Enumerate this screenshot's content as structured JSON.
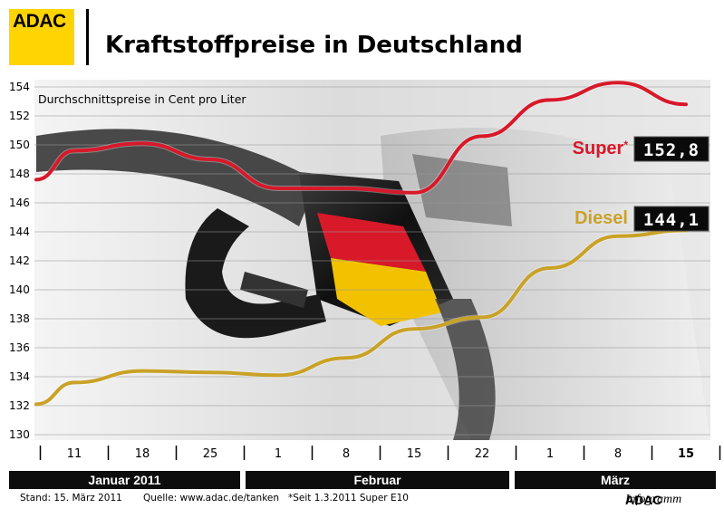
{
  "header": {
    "logo_text": "ADAC",
    "title": "Kraftstoffpreise in Deutschland"
  },
  "chart_data": {
    "type": "line",
    "subtitle": "Durchschnittspreise in Cent pro Liter",
    "ylim": [
      130,
      154
    ],
    "yticks": [
      130,
      132,
      134,
      136,
      138,
      140,
      142,
      144,
      146,
      148,
      150,
      152,
      154
    ],
    "categories": [
      "11",
      "18",
      "25",
      "1",
      "8",
      "15",
      "22",
      "1",
      "8",
      "15"
    ],
    "category_months": [
      "Januar 2011",
      "Januar 2011",
      "Januar 2011",
      "Februar",
      "Februar",
      "Februar",
      "Februar",
      "März",
      "März",
      "März"
    ],
    "months": [
      "Januar 2011",
      "Februar",
      "März"
    ],
    "grid": true,
    "series": [
      {
        "name": "Super",
        "name_marker": "*",
        "color": "#d7192a",
        "current_value": "152,8",
        "points": [
          [
            "start",
            147.6
          ],
          [
            "11",
            149.6
          ],
          [
            "18",
            150.1
          ],
          [
            "25",
            149.0
          ],
          [
            "1",
            147.0
          ],
          [
            "8",
            147.0
          ],
          [
            "15",
            146.7
          ],
          [
            "22",
            150.6
          ],
          [
            "1",
            153.1
          ],
          [
            "8",
            154.3
          ],
          [
            "15",
            152.8
          ]
        ]
      },
      {
        "name": "Diesel",
        "color": "#c9a227",
        "current_value": "144,1",
        "points": [
          [
            "start",
            132.1
          ],
          [
            "11",
            133.6
          ],
          [
            "18",
            134.4
          ],
          [
            "25",
            134.3
          ],
          [
            "1",
            134.1
          ],
          [
            "8",
            135.3
          ],
          [
            "15",
            137.3
          ],
          [
            "22",
            138.1
          ],
          [
            "1",
            141.5
          ],
          [
            "8",
            143.7
          ],
          [
            "15",
            144.1
          ]
        ]
      }
    ]
  },
  "footer": {
    "stand": "Stand:  15. März 2011",
    "quelle": "Quelle: www.adac.de/tanken",
    "note": "*Seit 1.3.2011 Super E10",
    "brand_bold": "ADAC",
    "brand_italic": "Infogramm"
  }
}
